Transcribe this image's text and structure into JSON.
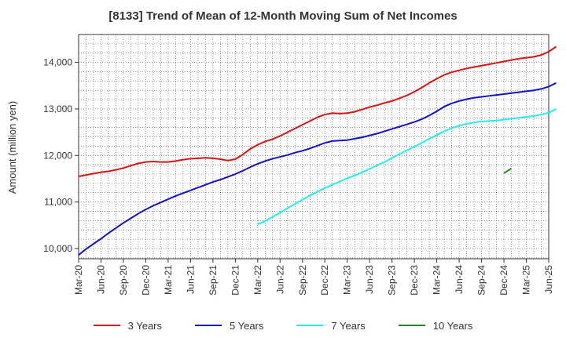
{
  "chart_data": {
    "type": "line",
    "title": "[8133]  Trend of Mean of 12-Month Moving Sum of Net Incomes",
    "xlabel": "",
    "ylabel": "Amount (million yen)",
    "x_ticks": [
      "Mar-20",
      "Jun-20",
      "Sep-20",
      "Dec-20",
      "Mar-21",
      "Jun-21",
      "Sep-21",
      "Dec-21",
      "Mar-22",
      "Jun-22",
      "Sep-22",
      "Dec-22",
      "Mar-23",
      "Jun-23",
      "Sep-23",
      "Dec-23",
      "Mar-24",
      "Jun-24",
      "Sep-24",
      "Dec-24",
      "Mar-25",
      "Jun-25"
    ],
    "y_ticks": [
      10000,
      11000,
      12000,
      13000,
      14000
    ],
    "y_tick_labels": [
      "10,000",
      "11,000",
      "12,000",
      "13,000",
      "14,000"
    ],
    "ylim": [
      9780,
      14600
    ],
    "grid": true,
    "legend_position": "bottom",
    "series": [
      {
        "name": "3 Years",
        "color": "#dd1111",
        "start": "Mar-20",
        "values": [
          11550,
          11580,
          11610,
          11640,
          11660,
          11690,
          11730,
          11780,
          11830,
          11860,
          11870,
          11860,
          11860,
          11880,
          11910,
          11930,
          11940,
          11950,
          11940,
          11920,
          11890,
          11920,
          12020,
          12140,
          12230,
          12300,
          12350,
          12420,
          12500,
          12580,
          12660,
          12740,
          12820,
          12880,
          12910,
          12900,
          12910,
          12940,
          12990,
          13040,
          13080,
          13130,
          13170,
          13230,
          13290,
          13370,
          13460,
          13560,
          13650,
          13730,
          13790,
          13830,
          13870,
          13900,
          13930,
          13960,
          13990,
          14020,
          14050,
          14080,
          14100,
          14120,
          14160,
          14230,
          14340
        ]
      },
      {
        "name": "5 Years",
        "color": "#1111cc",
        "start": "Mar-20",
        "values": [
          9860,
          9990,
          10100,
          10210,
          10330,
          10440,
          10550,
          10650,
          10750,
          10840,
          10920,
          10990,
          11060,
          11130,
          11190,
          11250,
          11310,
          11370,
          11430,
          11480,
          11540,
          11600,
          11670,
          11750,
          11820,
          11880,
          11930,
          11970,
          12010,
          12060,
          12100,
          12150,
          12210,
          12270,
          12310,
          12320,
          12330,
          12360,
          12390,
          12430,
          12470,
          12520,
          12570,
          12620,
          12670,
          12720,
          12780,
          12860,
          12950,
          13050,
          13120,
          13170,
          13210,
          13240,
          13260,
          13280,
          13300,
          13320,
          13340,
          13360,
          13380,
          13400,
          13430,
          13480,
          13560
        ]
      },
      {
        "name": "7 Years",
        "color": "#22eeee",
        "start": "Mar-22",
        "values": [
          10520,
          10590,
          10680,
          10770,
          10870,
          10960,
          11050,
          11140,
          11220,
          11300,
          11370,
          11440,
          11510,
          11570,
          11640,
          11710,
          11790,
          11860,
          11950,
          12030,
          12110,
          12190,
          12270,
          12360,
          12440,
          12520,
          12590,
          12640,
          12680,
          12710,
          12730,
          12740,
          12750,
          12770,
          12790,
          12810,
          12830,
          12850,
          12880,
          12920,
          13000
        ]
      },
      {
        "name": "10 Years",
        "color": "#228822",
        "start": "Dec-24",
        "values": [
          11620,
          11720
        ]
      }
    ]
  }
}
